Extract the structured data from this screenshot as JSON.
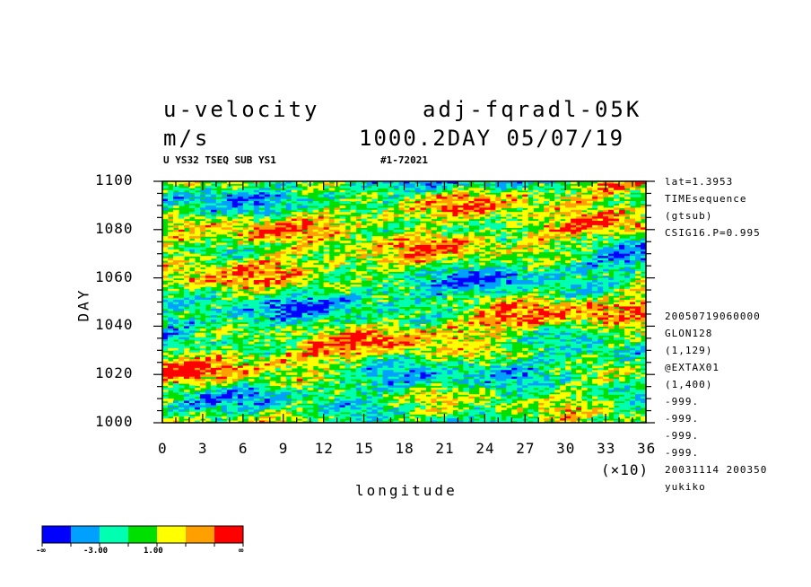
{
  "header": {
    "variable": "u-velocity",
    "experiment": "adj-fqradl-05K",
    "units": "m/s",
    "time_stamp": "1000.2DAY 05/07/19",
    "subtitle_left": "U YS32 TSEQ SUB YS1",
    "subtitle_right": "#1-72021"
  },
  "side_info": [
    "lat=1.3953",
    "TIMEsequence",
    "(gtsub)",
    "CSIG16.P=0.995",
    "20050719060000",
    "GLON128",
    "(1,129)",
    "@EXTAX01",
    "(1,400)",
    "-999.",
    "-999.",
    "-999.",
    "-999.",
    "20031114 200350",
    "yukiko"
  ],
  "x_multiplier": "(×10)",
  "chart_data": {
    "type": "heatmap",
    "xlabel": "longitude",
    "ylabel": "DAY",
    "xlim": [
      0,
      36
    ],
    "ylim": [
      1000,
      1100
    ],
    "x_ticks": [
      "0",
      "3",
      "6",
      "9",
      "12",
      "15",
      "18",
      "21",
      "24",
      "27",
      "30",
      "33",
      "36"
    ],
    "y_ticks": [
      "1000",
      "1020",
      "1040",
      "1060",
      "1080",
      "1100"
    ],
    "colorbar": {
      "colors": [
        "#0000ff",
        "#00a0ff",
        "#00ffb0",
        "#00e000",
        "#ffff00",
        "#ffa000",
        "#ff0000"
      ],
      "labels": [
        "-∞",
        "-3.00",
        "1.00",
        "∞"
      ]
    }
  }
}
